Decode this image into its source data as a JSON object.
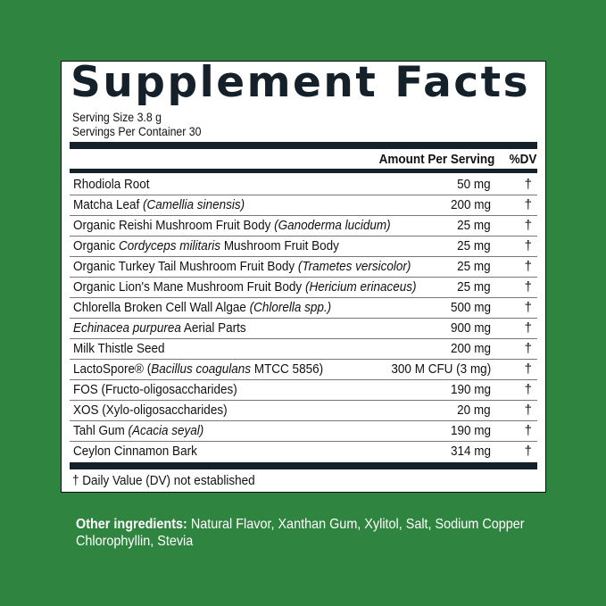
{
  "title": "Supplement Facts",
  "serving_size": "Serving Size 3.8 g",
  "servings_per_container": "Servings Per Container 30",
  "header": {
    "amount": "Amount Per Serving",
    "dv": "%DV"
  },
  "ingredients": [
    {
      "pre": "Rhodiola Root",
      "it": "",
      "post": "",
      "amount": "50 mg",
      "dv": "†"
    },
    {
      "pre": "Matcha Leaf ",
      "it": "(Camellia sinensis)",
      "post": "",
      "amount": "200 mg",
      "dv": "†"
    },
    {
      "pre": "Organic Reishi Mushroom Fruit Body ",
      "it": "(Ganoderma lucidum)",
      "post": "",
      "amount": "25 mg",
      "dv": "†"
    },
    {
      "pre": "Organic ",
      "it": "Cordyceps militaris",
      "post": " Mushroom Fruit Body",
      "amount": "25 mg",
      "dv": "†"
    },
    {
      "pre": "Organic Turkey Tail Mushroom Fruit Body ",
      "it": "(Trametes versicolor)",
      "post": "",
      "amount": "25 mg",
      "dv": "†"
    },
    {
      "pre": "Organic Lion's Mane Mushroom Fruit Body ",
      "it": "(Hericium erinaceus)",
      "post": "",
      "amount": "25 mg",
      "dv": "†"
    },
    {
      "pre": "Chlorella Broken Cell Wall Algae ",
      "it": "(Chlorella spp.)",
      "post": "",
      "amount": "500 mg",
      "dv": "†"
    },
    {
      "pre": "",
      "it": "Echinacea purpurea",
      "post": " Aerial Parts",
      "amount": "900 mg",
      "dv": "†"
    },
    {
      "pre": "Milk Thistle Seed",
      "it": "",
      "post": "",
      "amount": "200 mg",
      "dv": "†"
    },
    {
      "pre": "LactoSpore® (",
      "it": "Bacillus coagulans",
      "post": " MTCC 5856)",
      "amount": "300 M CFU (3 mg)",
      "dv": "†"
    },
    {
      "pre": "FOS (Fructo-oligosaccharides)",
      "it": "",
      "post": "",
      "amount": "190 mg",
      "dv": "†"
    },
    {
      "pre": "XOS (Xylo-oligosaccharides)",
      "it": "",
      "post": "",
      "amount": "20 mg",
      "dv": "†"
    },
    {
      "pre": "Tahl Gum ",
      "it": "(Acacia seyal)",
      "post": "",
      "amount": "190 mg",
      "dv": "†"
    },
    {
      "pre": "Ceylon Cinnamon Bark",
      "it": "",
      "post": "",
      "amount": "314 mg",
      "dv": "†"
    }
  ],
  "footnote": "† Daily Value (DV) not established",
  "other_ingredients": {
    "label": "Other ingredients:",
    "text": " Natural Flavor, Xanthan Gum, Xylitol, Salt, Sodium Copper Chlorophyllin, Stevia"
  },
  "colors": {
    "background": "#2f853f",
    "ink": "#14202a"
  }
}
